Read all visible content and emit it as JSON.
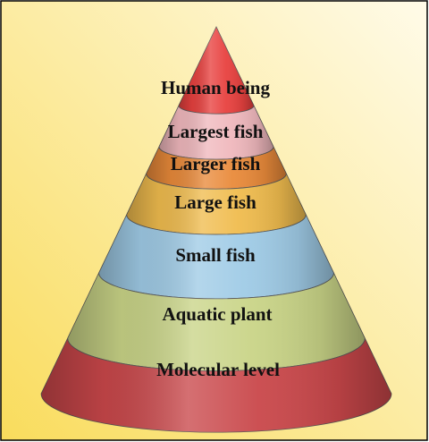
{
  "diagram": {
    "levels": [
      {
        "label": "Human being",
        "color": "#e8413f"
      },
      {
        "label": "Largest fish",
        "color": "#f0b8bd"
      },
      {
        "label": "Larger fish",
        "color": "#e98a3a"
      },
      {
        "label": "Large fish",
        "color": "#f0bc4e"
      },
      {
        "label": "Small fish",
        "color": "#9fcbe6"
      },
      {
        "label": "Aquatic plant",
        "color": "#c9d487"
      },
      {
        "label": "Molecular level",
        "color": "#c9474a"
      }
    ],
    "background": {
      "from": "#f9dc5c",
      "to": "#fffbe9"
    },
    "border_color": "#000000"
  }
}
